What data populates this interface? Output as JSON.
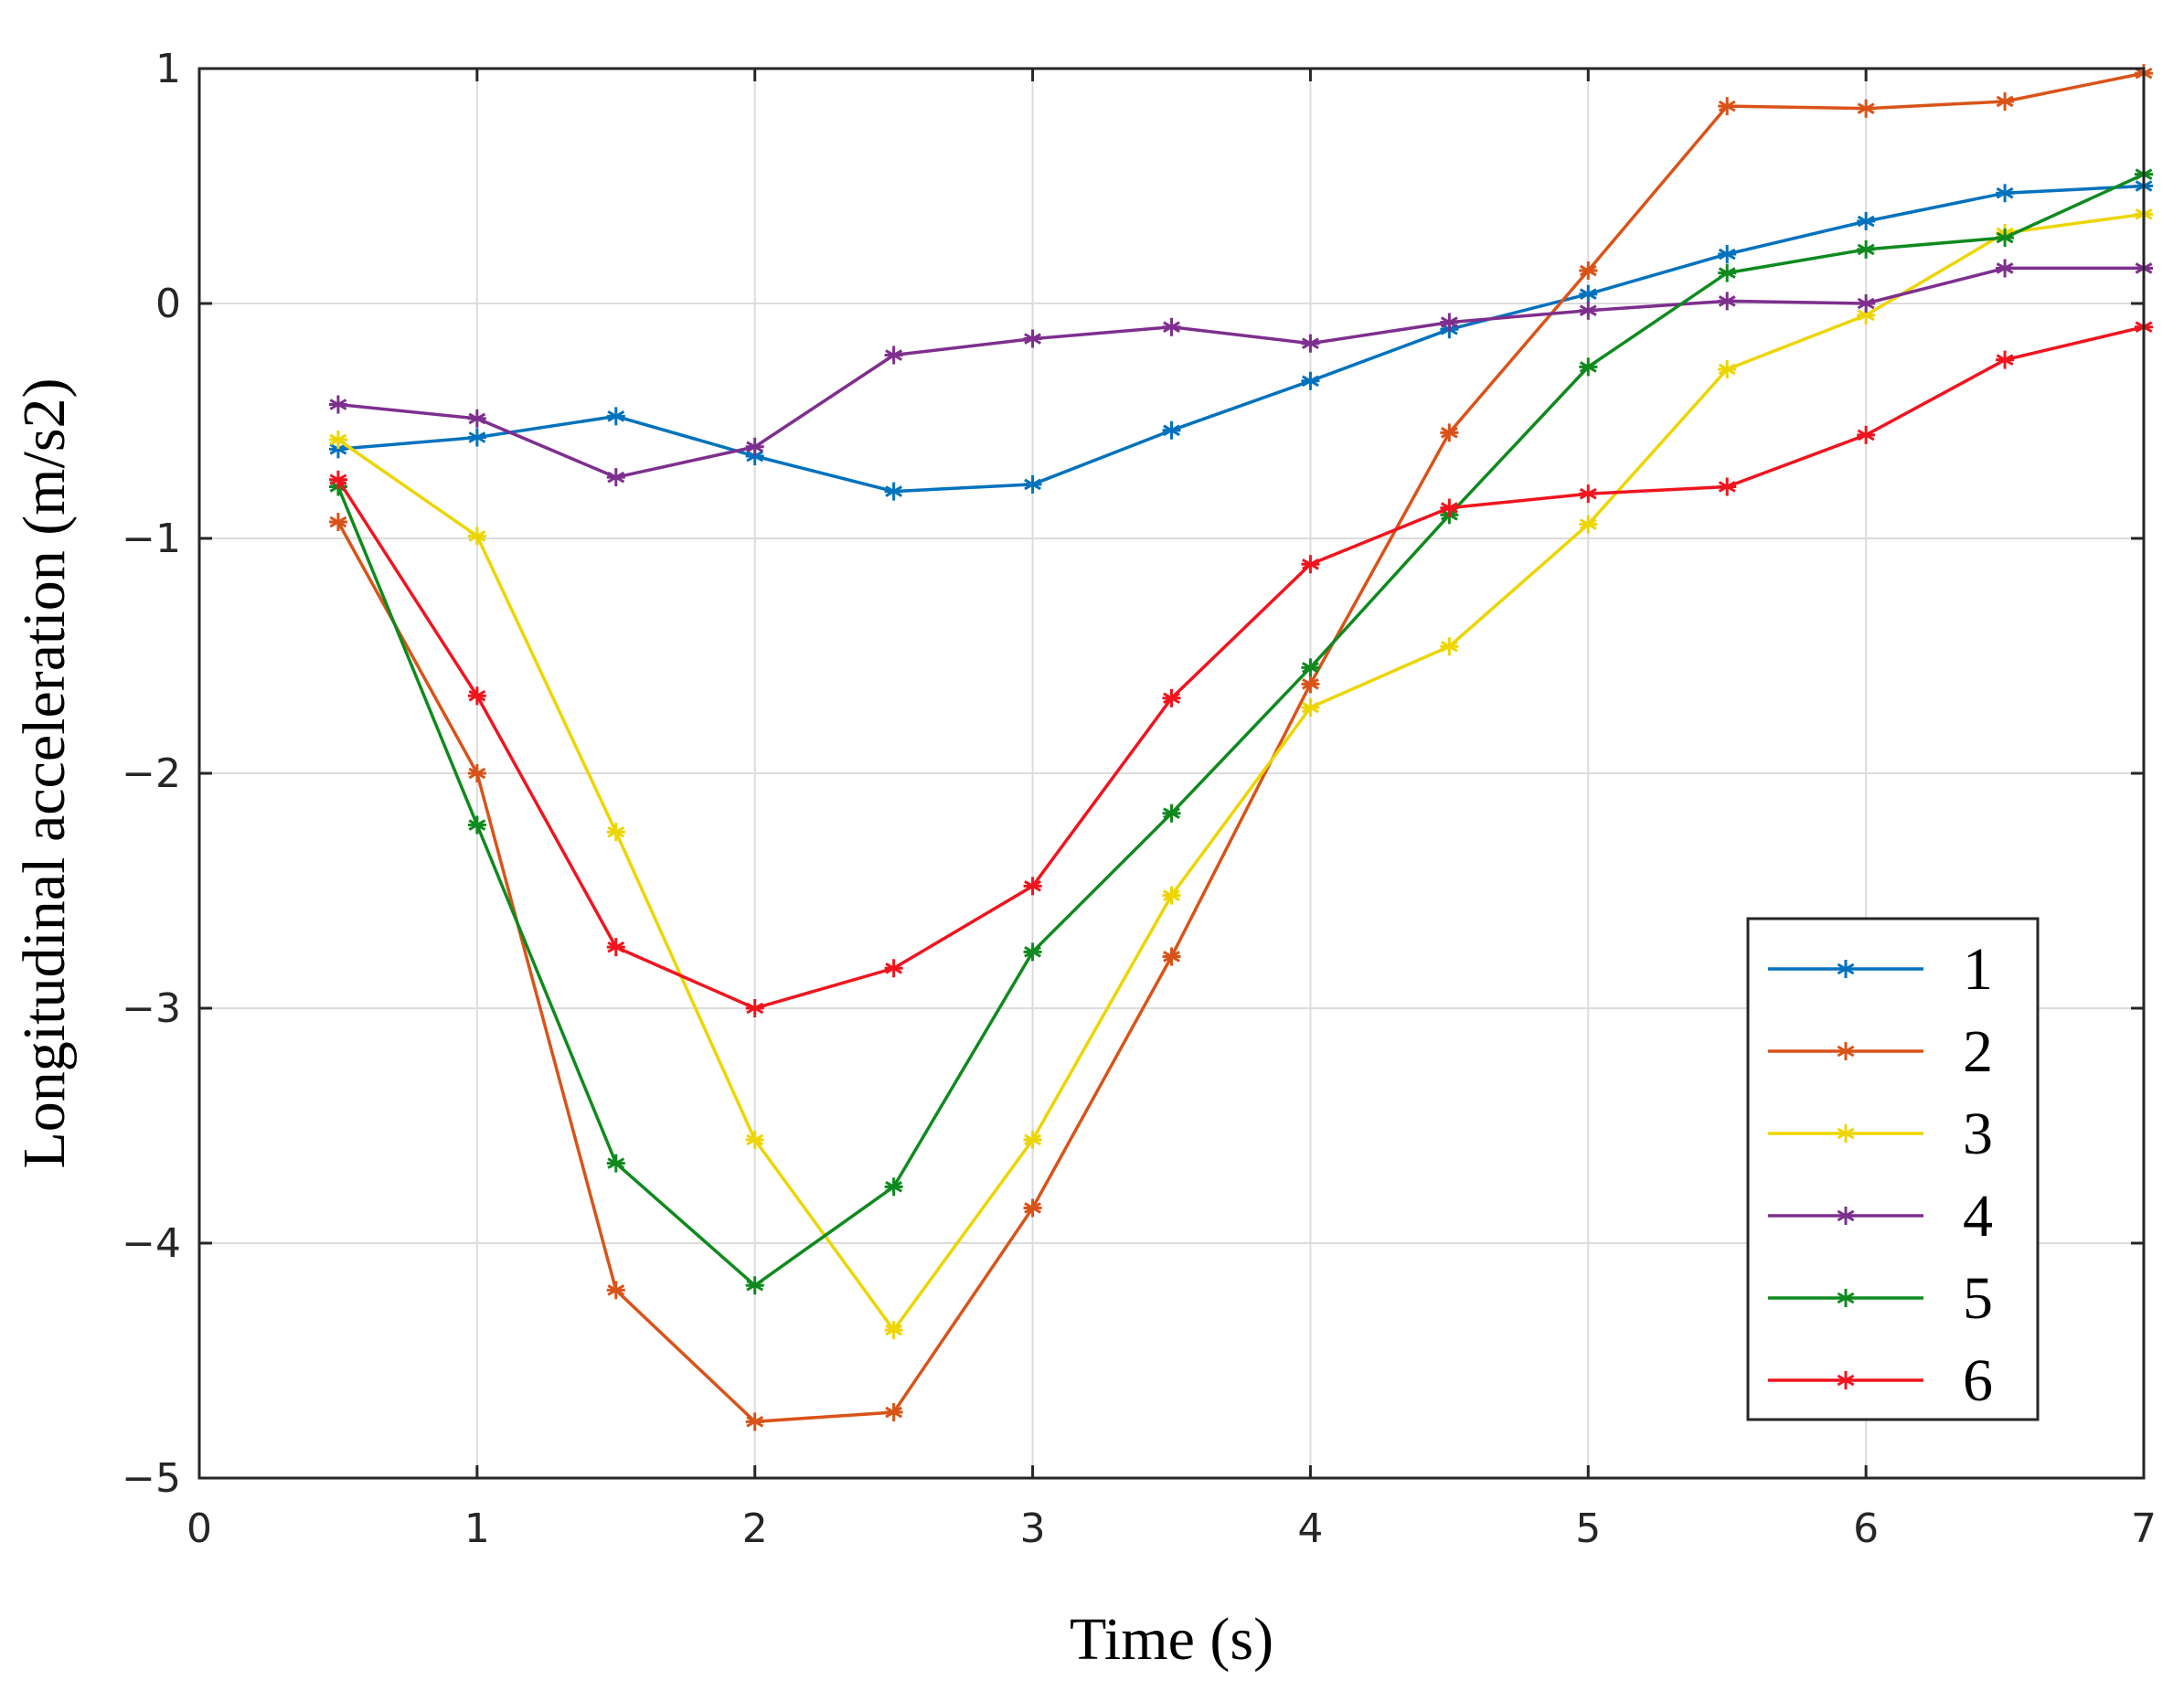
{
  "chart_data": {
    "type": "line",
    "title": "",
    "xlabel": "Time (s)",
    "ylabel": "Longitudinal acceleration (m/s2)",
    "xlim": [
      0,
      7
    ],
    "ylim": [
      -5,
      1
    ],
    "grid": true,
    "legend_position": "bottom-right",
    "x_ticks": [
      0,
      1,
      2,
      3,
      4,
      5,
      6,
      7
    ],
    "x_tick_labels": [
      "0",
      "1",
      "2",
      "3",
      "4",
      "5",
      "6",
      "7"
    ],
    "y_ticks": [
      1,
      0,
      -1,
      -2,
      -3,
      -4,
      -5
    ],
    "y_tick_labels": [
      "1",
      "0",
      "−1",
      "−2",
      "−3",
      "−4",
      "−5"
    ],
    "x": [
      0.5,
      1,
      1.5,
      2,
      2.5,
      3,
      3.5,
      4,
      4.5,
      5,
      5.5,
      6,
      6.5,
      7
    ],
    "series": [
      {
        "name": "1",
        "color": "#0072BD",
        "values": [
          -0.62,
          -0.57,
          -0.48,
          -0.65,
          -0.8,
          -0.77,
          -0.54,
          -0.33,
          -0.11,
          0.04,
          0.21,
          0.35,
          0.47,
          0.5
        ]
      },
      {
        "name": "2",
        "color": "#D95319",
        "values": [
          -0.93,
          -2.0,
          -4.2,
          -4.76,
          -4.72,
          -3.85,
          -2.78,
          -1.62,
          -0.55,
          0.14,
          0.84,
          0.83,
          0.86,
          0.98
        ]
      },
      {
        "name": "3",
        "color": "#EDD500",
        "values": [
          -0.58,
          -0.99,
          -2.25,
          -3.56,
          -4.37,
          -3.56,
          -2.52,
          -1.72,
          -1.46,
          -0.94,
          -0.28,
          -0.05,
          0.3,
          0.38
        ]
      },
      {
        "name": "4",
        "color": "#7E2F8E",
        "values": [
          -0.43,
          -0.49,
          -0.74,
          -0.61,
          -0.22,
          -0.15,
          -0.1,
          -0.17,
          -0.08,
          -0.03,
          0.01,
          0.0,
          0.15,
          0.15
        ]
      },
      {
        "name": "5",
        "color": "#0F8A1E",
        "values": [
          -0.78,
          -2.22,
          -3.66,
          -4.18,
          -3.76,
          -2.76,
          -2.17,
          -1.55,
          -0.9,
          -0.27,
          0.13,
          0.23,
          0.28,
          0.55
        ]
      },
      {
        "name": "6",
        "color": "#F0141E",
        "values": [
          -0.75,
          -1.67,
          -2.74,
          -3.0,
          -2.83,
          -2.48,
          -1.68,
          -1.11,
          -0.87,
          -0.81,
          -0.78,
          -0.56,
          -0.24,
          -0.1
        ]
      }
    ]
  }
}
